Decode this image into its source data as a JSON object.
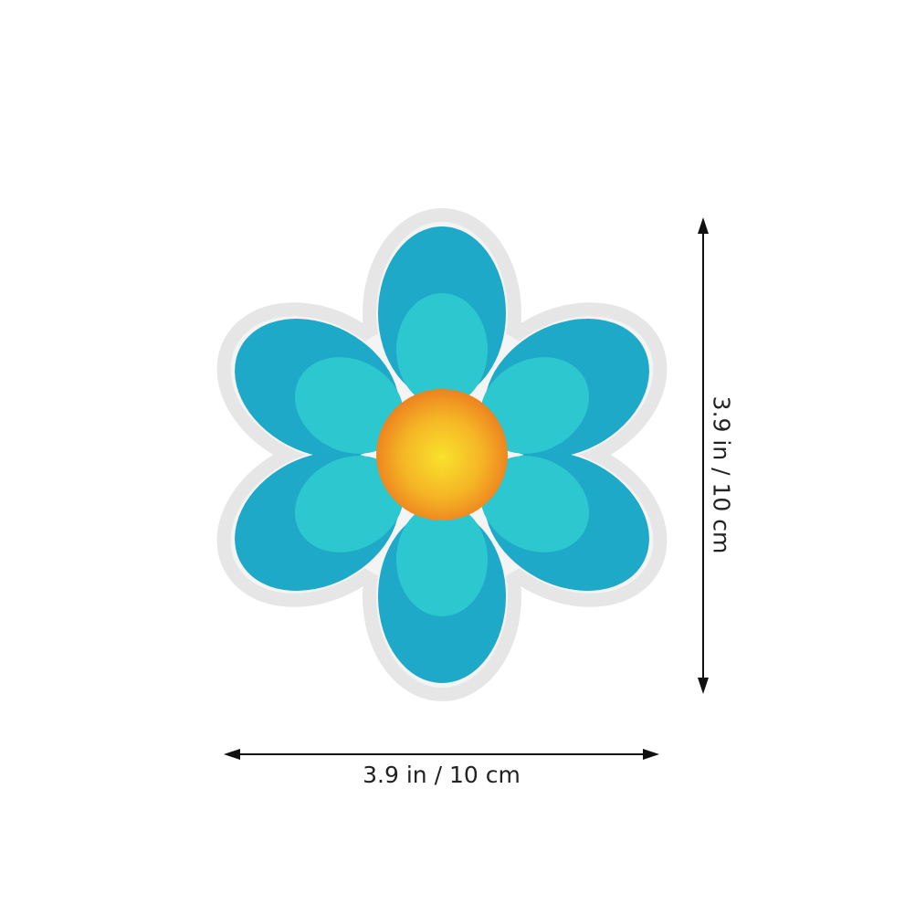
{
  "product": {
    "name_icon": "flower-sticker",
    "colors": {
      "petal_outer": "#1ea9c9",
      "petal_inner": "#2cc7cf",
      "center_edge": "#f0821e",
      "center_core": "#f7d52a",
      "backing": "#f4f4f4"
    }
  },
  "dimensions": {
    "width_label": "3.9 in / 10 cm",
    "height_label": "3.9 in / 10 cm"
  }
}
